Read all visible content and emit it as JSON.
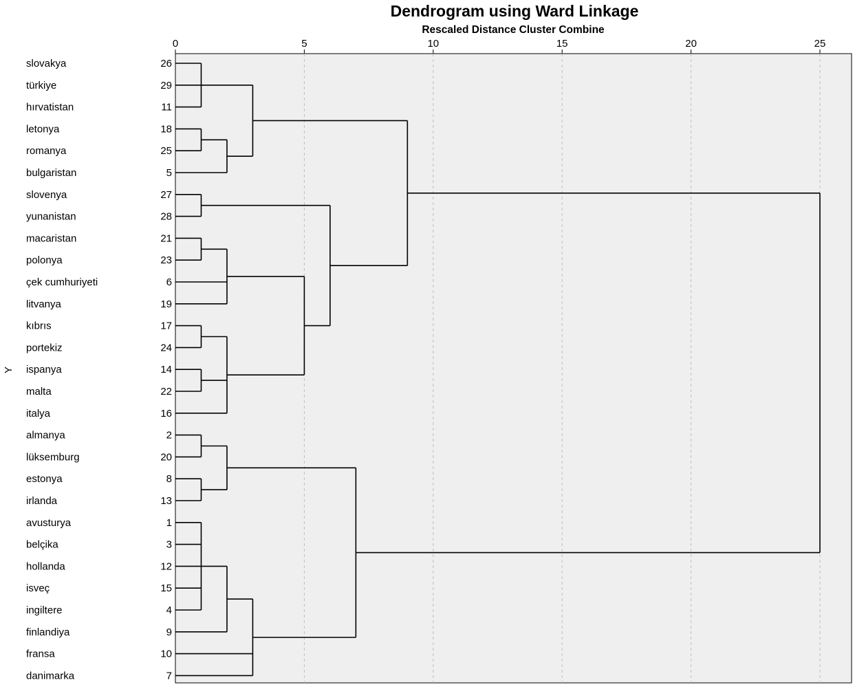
{
  "chart_data": {
    "type": "dendrogram",
    "title": "Dendrogram using Ward Linkage",
    "subtitle": "Rescaled Distance Cluster Combine",
    "ylabel": "Y",
    "xlim": [
      0,
      25
    ],
    "xticks": [
      0,
      5,
      10,
      15,
      20,
      25
    ],
    "grid": true,
    "colors": {
      "background": "#efefef",
      "line": "#000000",
      "grid": "#bdbdbd"
    },
    "leaves": [
      {
        "label": "slovakya",
        "case": "26"
      },
      {
        "label": "türkiye",
        "case": "29"
      },
      {
        "label": "hırvatistan",
        "case": "11"
      },
      {
        "label": "letonya",
        "case": "18"
      },
      {
        "label": "romanya",
        "case": "25"
      },
      {
        "label": "bulgaristan",
        "case": "5"
      },
      {
        "label": "slovenya",
        "case": "27"
      },
      {
        "label": "yunanistan",
        "case": "28"
      },
      {
        "label": "macaristan",
        "case": "21"
      },
      {
        "label": "polonya",
        "case": "23"
      },
      {
        "label": "çek cumhuriyeti",
        "case": "6"
      },
      {
        "label": "litvanya",
        "case": "19"
      },
      {
        "label": "kıbrıs",
        "case": "17"
      },
      {
        "label": "portekiz",
        "case": "24"
      },
      {
        "label": "ispanya",
        "case": "14"
      },
      {
        "label": "malta",
        "case": "22"
      },
      {
        "label": "italya",
        "case": "16"
      },
      {
        "label": "almanya",
        "case": "2"
      },
      {
        "label": "lüksemburg",
        "case": "20"
      },
      {
        "label": "estonya",
        "case": "8"
      },
      {
        "label": "irlanda",
        "case": "13"
      },
      {
        "label": "avusturya",
        "case": "1"
      },
      {
        "label": "belçika",
        "case": "3"
      },
      {
        "label": "hollanda",
        "case": "12"
      },
      {
        "label": "isveç",
        "case": "15"
      },
      {
        "label": "ingiltere",
        "case": "4"
      },
      {
        "label": "finlandiya",
        "case": "9"
      },
      {
        "label": "fransa",
        "case": "10"
      },
      {
        "label": "danimarka",
        "case": "7"
      }
    ],
    "merges": [
      {
        "id": "A",
        "children": [
          0,
          1,
          2
        ],
        "distance": 1.0
      },
      {
        "id": "B",
        "children": [
          3,
          4
        ],
        "distance": 1.0
      },
      {
        "id": "C",
        "children": [
          "B",
          5
        ],
        "distance": 2.0
      },
      {
        "id": "D",
        "children": [
          "A",
          "C"
        ],
        "distance": 3.0
      },
      {
        "id": "E",
        "children": [
          6,
          7
        ],
        "distance": 1.0
      },
      {
        "id": "F",
        "children": [
          8,
          9
        ],
        "distance": 1.0
      },
      {
        "id": "G",
        "children": [
          "F",
          10,
          11
        ],
        "distance": 2.0
      },
      {
        "id": "H",
        "children": [
          12,
          13
        ],
        "distance": 1.0
      },
      {
        "id": "I",
        "children": [
          14,
          15
        ],
        "distance": 1.0
      },
      {
        "id": "J",
        "children": [
          "H",
          "I",
          16
        ],
        "distance": 2.0
      },
      {
        "id": "K",
        "children": [
          "G",
          "J"
        ],
        "distance": 5.0
      },
      {
        "id": "L",
        "children": [
          "E",
          "K"
        ],
        "distance": 6.0
      },
      {
        "id": "M",
        "children": [
          "D",
          "L"
        ],
        "distance": 9.0
      },
      {
        "id": "N",
        "children": [
          17,
          18
        ],
        "distance": 1.0
      },
      {
        "id": "O",
        "children": [
          19,
          20
        ],
        "distance": 1.0
      },
      {
        "id": "P",
        "children": [
          "N",
          "O"
        ],
        "distance": 2.0
      },
      {
        "id": "Q",
        "children": [
          21,
          22,
          23,
          24,
          25
        ],
        "distance": 1.0
      },
      {
        "id": "R",
        "children": [
          "Q",
          26
        ],
        "distance": 2.0
      },
      {
        "id": "S",
        "children": [
          "R",
          27,
          28
        ],
        "distance": 3.0
      },
      {
        "id": "T",
        "children": [
          "P",
          "S"
        ],
        "distance": 7.0
      },
      {
        "id": "U",
        "children": [
          "M",
          "T"
        ],
        "distance": 25.0
      }
    ]
  }
}
